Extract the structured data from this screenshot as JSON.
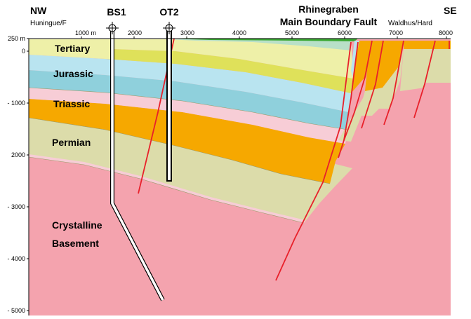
{
  "header": {
    "left_direction": "NW",
    "left_place": "Huningue/F",
    "right_direction": "SE",
    "right_place": "Waldhus/Hard",
    "fault_line1": "Rhinegraben",
    "fault_line2": "Main Boundary Fault"
  },
  "wells": [
    {
      "name": "BS1"
    },
    {
      "name": "OT2"
    }
  ],
  "x_ticks": [
    "1000 m",
    "2000",
    "3000",
    "4000",
    "5000",
    "6000",
    "7000",
    "8000"
  ],
  "y_ticks": [
    "250 m",
    "0",
    "- 1000",
    "2000",
    "- 3000",
    "- 4000",
    "- 5000"
  ],
  "units": [
    {
      "name": "Tertiary",
      "color": "#eef0a8"
    },
    {
      "name": "Jurassic",
      "color": "#b9e4f0"
    },
    {
      "name": "Triassic",
      "color": "#f6a800"
    },
    {
      "name": "Permian",
      "color": "#dcdcaa"
    },
    {
      "name": "Crystalline",
      "color": "#f4a3ae"
    },
    {
      "name": "Basement",
      "color": "#f4a3ae"
    }
  ],
  "colors": {
    "fault": "#e8202a",
    "surface": "#39a832",
    "jurassic_lower": "#8fd0dc",
    "triassic_upper": "#f7cdd6",
    "tertiary_lower": "#dfe15a",
    "axis": "#000000"
  }
}
